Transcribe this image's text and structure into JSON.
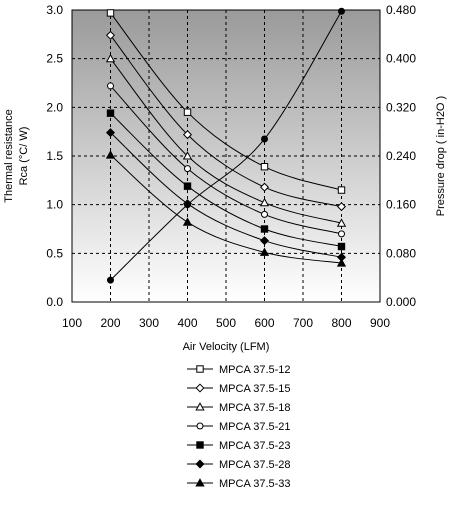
{
  "chart_data": {
    "type": "line",
    "title": "",
    "xlabel": "Air Velocity (LFM)",
    "ylabel_left_line1": "Thermal resistance",
    "ylabel_left_line2": "Rca (°C/ W)",
    "ylabel_right": "Pressure drop ( in-H2O )",
    "xlim": [
      100,
      900
    ],
    "x_ticks": [
      "100",
      "200",
      "300",
      "400",
      "500",
      "600",
      "700",
      "800",
      "900"
    ],
    "ylim_left": [
      0,
      3
    ],
    "y_ticks_left": [
      "0.0",
      "0.5",
      "1.0",
      "1.5",
      "2.0",
      "2.5",
      "3.0"
    ],
    "ylim_right": [
      0,
      0.48
    ],
    "y_ticks_right": [
      "0.000",
      "0.080",
      "0.160",
      "0.240",
      "0.320",
      "0.400",
      "0.480"
    ],
    "grid": true,
    "background_gradient": [
      "#9a9a9a",
      "#ffffff"
    ],
    "legend_position": "bottom",
    "x": [
      200,
      400,
      600,
      800
    ],
    "series": [
      {
        "name": "MPCA 37.5-12",
        "marker": "square-open",
        "axis": "left",
        "values": [
          2.97,
          1.95,
          1.39,
          1.15
        ]
      },
      {
        "name": "MPCA 37.5-15",
        "marker": "diamond-open",
        "axis": "left",
        "values": [
          2.74,
          1.72,
          1.18,
          0.98
        ]
      },
      {
        "name": "MPCA 37.5-18",
        "marker": "triangle-open",
        "axis": "left",
        "values": [
          2.5,
          1.5,
          1.02,
          0.81
        ]
      },
      {
        "name": "MPCA 37.5-21",
        "marker": "circle-open",
        "axis": "left",
        "values": [
          2.22,
          1.37,
          0.9,
          0.7
        ]
      },
      {
        "name": "MPCA 37.5-23",
        "marker": "square-filled",
        "axis": "left",
        "values": [
          1.94,
          1.19,
          0.75,
          0.57
        ]
      },
      {
        "name": "MPCA 37.5-28",
        "marker": "diamond-filled",
        "axis": "left",
        "values": [
          1.74,
          1.01,
          0.63,
          0.46
        ]
      },
      {
        "name": "MPCA 37.5-33",
        "marker": "triangle-filled",
        "axis": "left",
        "values": [
          1.51,
          0.82,
          0.51,
          0.4
        ]
      }
    ],
    "pressure_series": {
      "marker": "circle-filled",
      "axis": "right",
      "x": [
        200,
        400,
        600,
        800
      ],
      "values": [
        0.036,
        0.16,
        0.268,
        0.478
      ]
    }
  }
}
